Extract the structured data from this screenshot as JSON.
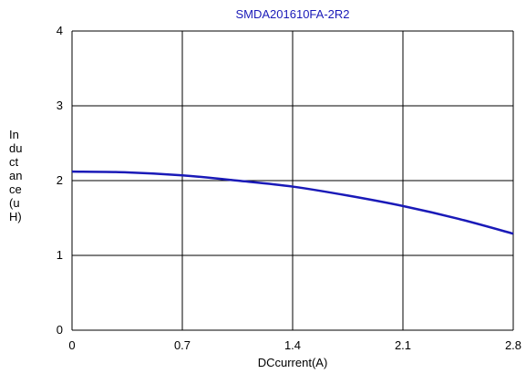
{
  "chart_data": {
    "type": "line",
    "title": "SMDA201610FA-2R2",
    "xlabel": "DCcurrent(A)",
    "ylabel_lines": [
      "In",
      "du",
      "ct",
      "an",
      "ce",
      "(u",
      "H)"
    ],
    "xlim": [
      0,
      2.8
    ],
    "ylim": [
      0,
      4
    ],
    "x_ticks": [
      "0",
      "0.7",
      "1.4",
      "2.1",
      "2.8"
    ],
    "y_ticks": [
      "0",
      "1",
      "2",
      "3",
      "4"
    ],
    "grid": true,
    "series": [
      {
        "color": "#1a1ab8",
        "x": [
          0,
          0.35,
          0.7,
          1.05,
          1.4,
          1.75,
          2.1,
          2.45,
          2.8
        ],
        "y": [
          2.12,
          2.11,
          2.07,
          2.0,
          1.92,
          1.8,
          1.66,
          1.49,
          1.29
        ]
      }
    ],
    "colors": {
      "title": "#1a1ab8",
      "grid": "#000000",
      "line": "#1a1ab8"
    }
  }
}
